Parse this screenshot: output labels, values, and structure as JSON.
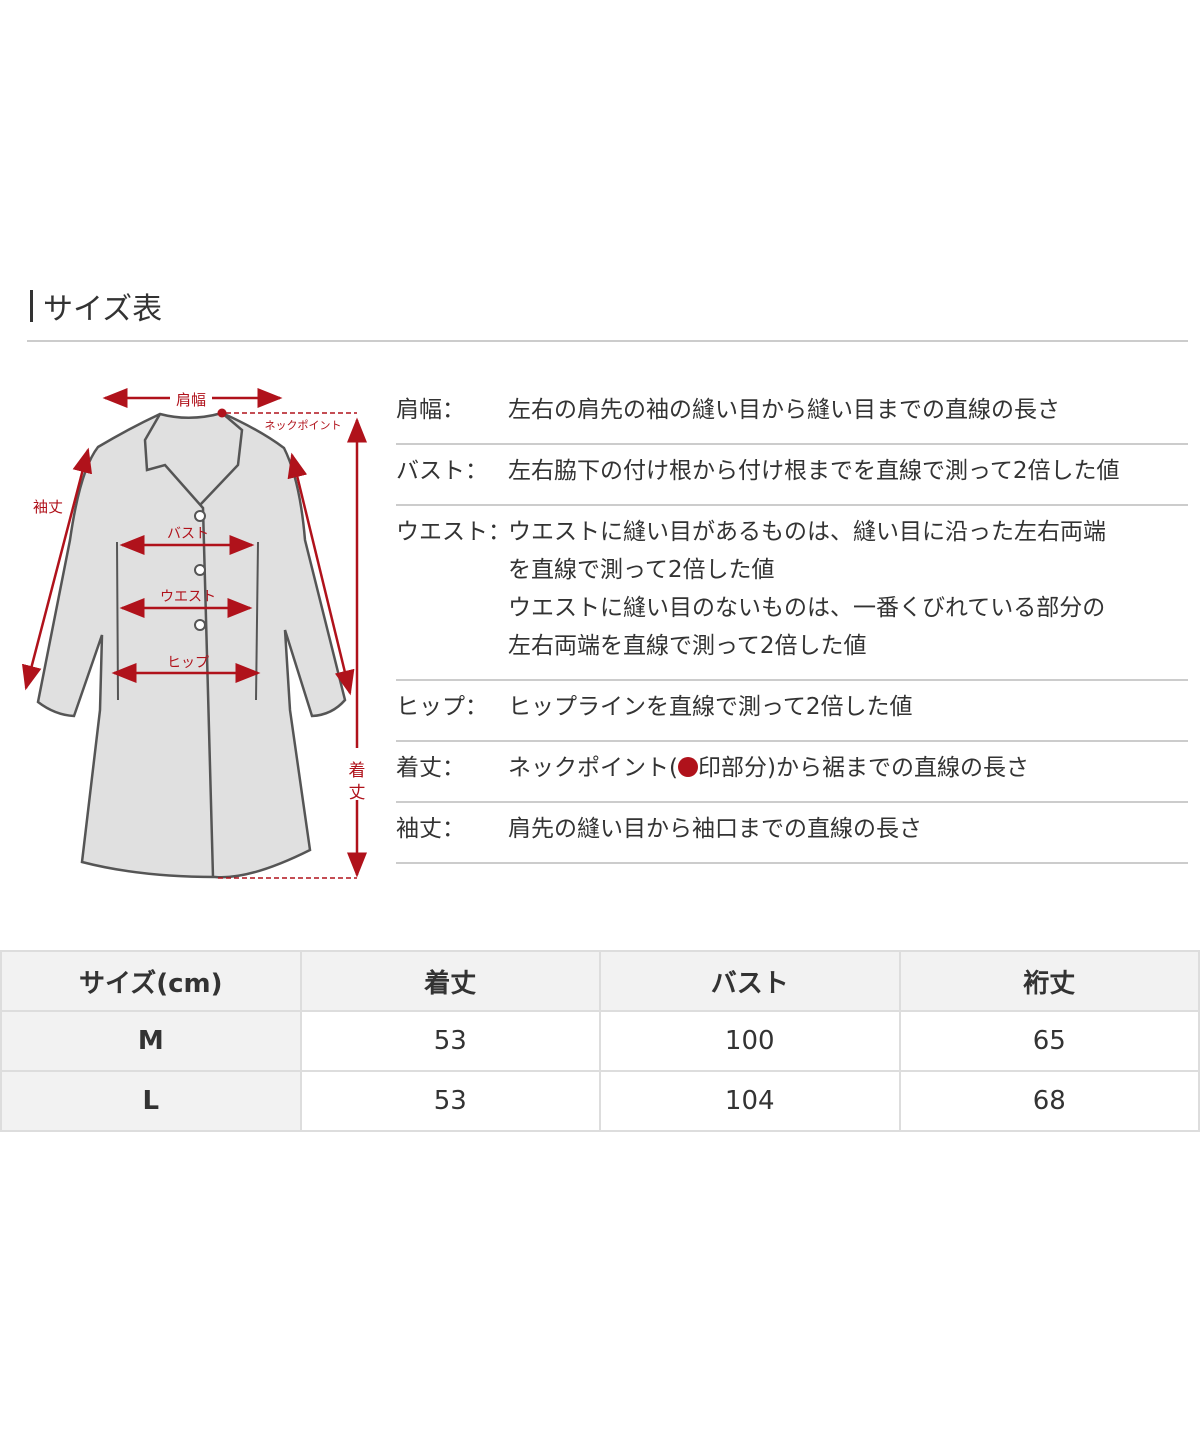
{
  "title": "サイズ表",
  "diagram": {
    "labels": {
      "shoulder": "肩幅",
      "neck_point": "ネックポイント",
      "sleeve": "袖丈",
      "bust": "バスト",
      "waist": "ウエスト",
      "hip": "ヒップ",
      "length_1": "着",
      "length_2": "丈"
    },
    "accent_color": "#b0121b",
    "coat_fill": "#e0e0e0"
  },
  "definitions": [
    {
      "label": "肩幅：",
      "text": "左右の肩先の袖の縫い目から縫い目までの直線の長さ"
    },
    {
      "label": "バスト：",
      "text": "左右脇下の付け根から付け根までを直線で測って2倍した値"
    },
    {
      "label": "ウエスト：",
      "text": "ウエストに縫い目があるものは、縫い目に沿った左右両端\nを直線で測って2倍した値\nウエストに縫い目のないものは、一番くびれている部分の\n左右両端を直線で測って2倍した値"
    },
    {
      "label": "ヒップ：",
      "text": "ヒップラインを直線で測って2倍した値"
    },
    {
      "label": "着丈：",
      "text_before": "ネックポイント(",
      "text_after": "印部分)から裾までの直線の長さ"
    },
    {
      "label": "袖丈：",
      "text": "肩先の縫い目から袖口までの直線の長さ"
    }
  ],
  "table": {
    "headers": [
      "サイズ(cm)",
      "着丈",
      "バスト",
      "裄丈"
    ],
    "rows": [
      [
        "M",
        "53",
        "100",
        "65"
      ],
      [
        "L",
        "53",
        "104",
        "68"
      ]
    ]
  }
}
